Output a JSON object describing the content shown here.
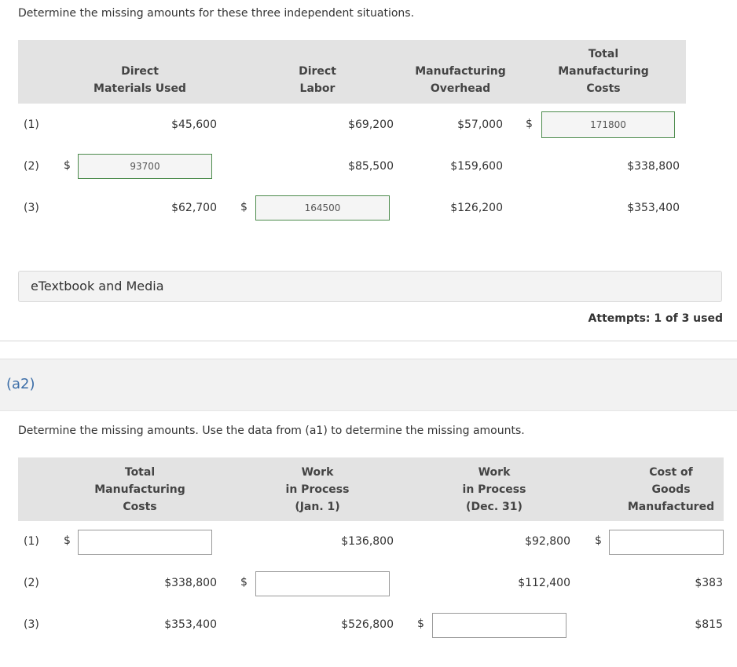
{
  "a1": {
    "instruction": "Determine the missing amounts for these three independent situations.",
    "headers": [
      "Direct Materials Used",
      "Direct Labor",
      "Manufacturing Overhead",
      "Total Manufacturing Costs"
    ],
    "header_lines": {
      "dm": [
        "Direct",
        "Materials Used"
      ],
      "dl": [
        "Direct",
        "Labor"
      ],
      "mo": [
        "Manufacturing",
        "Overhead"
      ],
      "tmc": [
        "Total",
        "Manufacturing",
        "Costs"
      ]
    },
    "rows": [
      {
        "label": "(1)",
        "dm": "$45,600",
        "dl": "$69,200",
        "mo": "$57,000",
        "tmc_input": "171800"
      },
      {
        "label": "(2)",
        "dm_input": "93700",
        "dl": "$85,500",
        "mo": "$159,600",
        "tmc": "$338,800"
      },
      {
        "label": "(3)",
        "dm": "$62,700",
        "dl_input": "164500",
        "mo": "$126,200",
        "tmc": "$353,400"
      }
    ],
    "currency_symbol": "$"
  },
  "resources": {
    "etextbook_label": "eTextbook and Media",
    "attempts": "Attempts: 1 of 3 used"
  },
  "a2": {
    "part_label": "(a2)",
    "instruction": "Determine the missing amounts. Use the data from (a1) to determine the missing amounts.",
    "header_lines": {
      "tmc": [
        "Total",
        "Manufacturing",
        "Costs"
      ],
      "wip_jan": [
        "Work",
        "in Process",
        "(Jan. 1)"
      ],
      "wip_dec": [
        "Work",
        "in Process",
        "(Dec. 31)"
      ],
      "cogm": [
        "Cost of",
        "Goods",
        "Manufactured"
      ]
    },
    "rows": [
      {
        "label": "(1)",
        "tmc_input": "",
        "wip_jan": "$136,800",
        "wip_dec": "$92,800",
        "cogm_input": ""
      },
      {
        "label": "(2)",
        "tmc": "$338,800",
        "wip_jan_input": "",
        "wip_dec": "$112,400",
        "cogm": "$383"
      },
      {
        "label": "(3)",
        "tmc": "$353,400",
        "wip_jan": "$526,800",
        "wip_dec_input": "",
        "cogm": "$815"
      }
    ]
  },
  "colors": {
    "header_bg": "#e3e3e3",
    "filled_input_border": "#4c8b4c",
    "part_label": "#3c6ea8"
  }
}
